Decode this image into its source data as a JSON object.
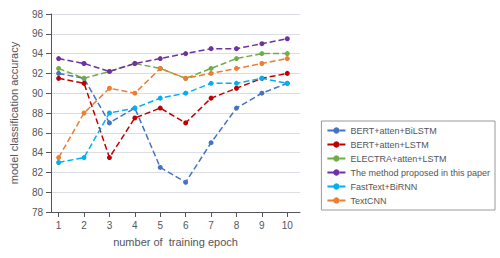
{
  "chart_data": {
    "type": "line",
    "xlabel": "number of  training epoch",
    "ylabel": "model classification accuracy",
    "x": [
      1,
      2,
      3,
      4,
      5,
      6,
      7,
      8,
      9,
      10
    ],
    "series": [
      {
        "name": "BERT+atten+BiLSTM",
        "color": "#4472C4",
        "values": [
          92.0,
          91.5,
          87.0,
          88.5,
          82.5,
          81.0,
          85.0,
          88.5,
          90.0,
          91.0
        ]
      },
      {
        "name": "BERT+atten+LSTM",
        "color": "#C00000",
        "values": [
          91.5,
          91.0,
          83.5,
          87.5,
          88.5,
          87.0,
          89.5,
          90.5,
          91.5,
          92.0
        ]
      },
      {
        "name": "ELECTRA+atten+LSTM",
        "color": "#70AD47",
        "values": [
          92.5,
          91.5,
          92.2,
          93.0,
          92.5,
          91.5,
          92.5,
          93.5,
          94.0,
          94.0
        ]
      },
      {
        "name": "The method proposed in this paper",
        "color": "#7030A0",
        "values": [
          93.5,
          93.0,
          92.2,
          93.0,
          93.5,
          94.0,
          94.5,
          94.5,
          95.0,
          95.5
        ]
      },
      {
        "name": "FastText+BiRNN",
        "color": "#00B0F0",
        "values": [
          83.0,
          83.5,
          88.0,
          88.5,
          89.5,
          90.0,
          91.0,
          91.0,
          91.5,
          91.0
        ]
      },
      {
        "name": "TextCNN",
        "color": "#ED7D31",
        "values": [
          83.5,
          88.0,
          90.5,
          90.0,
          92.5,
          91.5,
          92.0,
          92.5,
          93.0,
          93.5
        ]
      }
    ],
    "xlim": [
      0.7,
      10.5
    ],
    "xticks": [
      1,
      2,
      3,
      4,
      5,
      6,
      7,
      8,
      9,
      10
    ],
    "ylim": [
      78,
      98
    ],
    "yticks": [
      78,
      80,
      82,
      84,
      86,
      88,
      90,
      92,
      94,
      96,
      98
    ],
    "grid": true,
    "legend": "lower right",
    "marker": "circle",
    "line_style": "dashed"
  }
}
